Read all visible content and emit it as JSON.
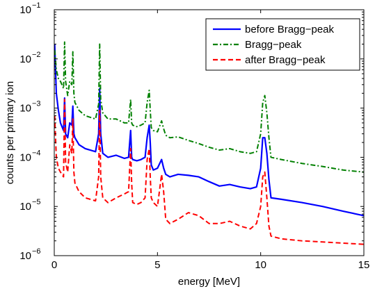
{
  "chart_data": {
    "type": "line",
    "title": "",
    "xlabel": "energy [MeV]",
    "ylabel": "counts per primary ion",
    "xlim": [
      0,
      15
    ],
    "ylim": [
      1e-06,
      0.1
    ],
    "yscale": "log",
    "grid": false,
    "legend_position": "top-right",
    "x_ticks": [
      {
        "value": 0,
        "label": "0"
      },
      {
        "value": 5,
        "label": "5"
      },
      {
        "value": 10,
        "label": "10"
      },
      {
        "value": 15,
        "label": "15"
      }
    ],
    "y_ticks": [
      {
        "value": 1e-06,
        "base": "10",
        "exp": "−6"
      },
      {
        "value": 1e-05,
        "base": "10",
        "exp": "−5"
      },
      {
        "value": 0.0001,
        "base": "10",
        "exp": "−4"
      },
      {
        "value": 0.001,
        "base": "10",
        "exp": "−3"
      },
      {
        "value": 0.01,
        "base": "10",
        "exp": "−2"
      },
      {
        "value": 0.1,
        "base": "10",
        "exp": "−1"
      }
    ],
    "series": [
      {
        "name": "before Bragg−peak",
        "color": "#0000ff",
        "dash": "solid",
        "x": [
          0.02,
          0.1,
          0.2,
          0.3,
          0.45,
          0.5,
          0.55,
          0.65,
          0.75,
          0.85,
          0.9,
          0.95,
          1.0,
          1.2,
          1.5,
          2.0,
          2.15,
          2.2,
          2.25,
          2.35,
          2.6,
          3.0,
          3.4,
          3.6,
          3.7,
          3.75,
          3.8,
          4.0,
          4.2,
          4.4,
          4.5,
          4.6,
          4.65,
          4.7,
          4.8,
          5.0,
          5.2,
          5.3,
          5.4,
          5.6,
          6.0,
          6.5,
          7.0,
          7.5,
          8.0,
          8.5,
          9.0,
          9.5,
          9.8,
          10.0,
          10.1,
          10.2,
          10.3,
          10.4,
          10.5,
          11.0,
          12.0,
          13.0,
          14.0,
          15.0
        ],
        "y": [
          0.02,
          0.002,
          0.0009,
          0.0005,
          0.00035,
          0.0016,
          0.0003,
          0.00025,
          0.0005,
          0.00045,
          0.0011,
          0.0003,
          0.00025,
          0.00018,
          0.00015,
          0.00013,
          0.0003,
          0.0025,
          0.0003,
          0.00012,
          0.0001,
          0.00011,
          9.5e-05,
          0.0001,
          0.00035,
          0.0001,
          9e-05,
          8.5e-05,
          9e-05,
          0.0001,
          0.00025,
          0.00045,
          0.0002,
          7e-05,
          5.5e-05,
          6e-05,
          9e-05,
          6e-05,
          4.5e-05,
          4e-05,
          4.5e-05,
          4.3e-05,
          4e-05,
          3.2e-05,
          2.6e-05,
          2.8e-05,
          2.5e-05,
          2.3e-05,
          2.5e-05,
          6e-05,
          0.00025,
          0.00025,
          0.00012,
          3.5e-05,
          1.5e-05,
          1.4e-05,
          1.2e-05,
          1e-05,
          8e-06,
          6.5e-06
        ]
      },
      {
        "name": "Bragg−peak",
        "color": "#008000",
        "dash": "dashdot",
        "x": [
          0.02,
          0.1,
          0.2,
          0.3,
          0.45,
          0.5,
          0.55,
          0.65,
          0.75,
          0.85,
          0.9,
          0.95,
          1.0,
          1.2,
          1.5,
          2.0,
          2.15,
          2.2,
          2.25,
          2.35,
          2.6,
          3.0,
          3.4,
          3.6,
          3.7,
          3.75,
          3.8,
          4.0,
          4.2,
          4.4,
          4.5,
          4.6,
          4.65,
          4.7,
          4.8,
          5.0,
          5.2,
          5.3,
          5.4,
          5.6,
          6.0,
          6.5,
          7.0,
          7.5,
          8.0,
          8.5,
          9.0,
          9.5,
          9.8,
          10.0,
          10.1,
          10.2,
          10.3,
          10.4,
          10.5,
          11.0,
          12.0,
          13.0,
          14.0,
          15.0
        ],
        "y": [
          0.015,
          0.006,
          0.004,
          0.0035,
          0.0025,
          0.022,
          0.0035,
          0.0018,
          0.0035,
          0.003,
          0.014,
          0.002,
          0.0013,
          0.0009,
          0.0007,
          0.0006,
          0.0012,
          0.02,
          0.0015,
          0.0008,
          0.0006,
          0.0006,
          0.0005,
          0.0005,
          0.0015,
          0.0005,
          0.00045,
          0.00042,
          0.00045,
          0.0005,
          0.0013,
          0.0023,
          0.0009,
          0.0004,
          0.00035,
          0.00033,
          0.00055,
          0.00038,
          0.00028,
          0.00025,
          0.00026,
          0.00022,
          0.00019,
          0.00016,
          0.00014,
          0.00015,
          0.00013,
          0.00012,
          0.00013,
          0.0003,
          0.0013,
          0.0018,
          0.0008,
          0.00025,
          0.0001,
          9e-05,
          7.5e-05,
          6.5e-05,
          5.5e-05,
          5e-05
        ]
      },
      {
        "name": "after Bragg−peak",
        "color": "#ff0000",
        "dash": "dashed",
        "x": [
          0.02,
          0.1,
          0.2,
          0.3,
          0.45,
          0.5,
          0.55,
          0.65,
          0.75,
          0.85,
          0.9,
          0.95,
          1.0,
          1.2,
          1.5,
          2.0,
          2.15,
          2.2,
          2.25,
          2.35,
          2.6,
          3.0,
          3.4,
          3.6,
          3.7,
          3.75,
          3.8,
          4.0,
          4.2,
          4.4,
          4.5,
          4.6,
          4.65,
          4.7,
          4.8,
          5.0,
          5.2,
          5.3,
          5.4,
          5.6,
          6.0,
          6.5,
          7.0,
          7.5,
          8.0,
          8.5,
          9.0,
          9.5,
          9.8,
          10.0,
          10.1,
          10.2,
          10.3,
          10.4,
          10.5,
          11.0,
          12.0,
          13.0,
          14.0,
          15.0
        ],
        "y": [
          0.0007,
          0.0001,
          6e-05,
          5e-05,
          4e-05,
          0.0015,
          8e-05,
          5e-05,
          0.00018,
          0.00012,
          0.0006,
          5e-05,
          3e-05,
          2e-05,
          1.5e-05,
          1.3e-05,
          4e-05,
          0.0009,
          4e-05,
          1.5e-05,
          1.2e-05,
          1.5e-05,
          1.8e-05,
          2e-05,
          0.00015,
          3e-05,
          1.2e-05,
          1.1e-05,
          1.2e-05,
          1.5e-05,
          9e-05,
          0.00015,
          4e-05,
          1.5e-05,
          1.2e-05,
          1e-05,
          4.5e-05,
          2e-05,
          5.5e-06,
          4.5e-06,
          5.5e-06,
          7.5e-06,
          6.5e-06,
          4.5e-06,
          4.5e-06,
          5e-06,
          4e-06,
          3.5e-06,
          4.5e-06,
          1e-05,
          4e-05,
          5e-05,
          1.5e-05,
          4e-06,
          2.5e-06,
          2.2e-06,
          2e-06,
          1.9e-06,
          1.8e-06,
          1.7e-06
        ]
      }
    ]
  }
}
